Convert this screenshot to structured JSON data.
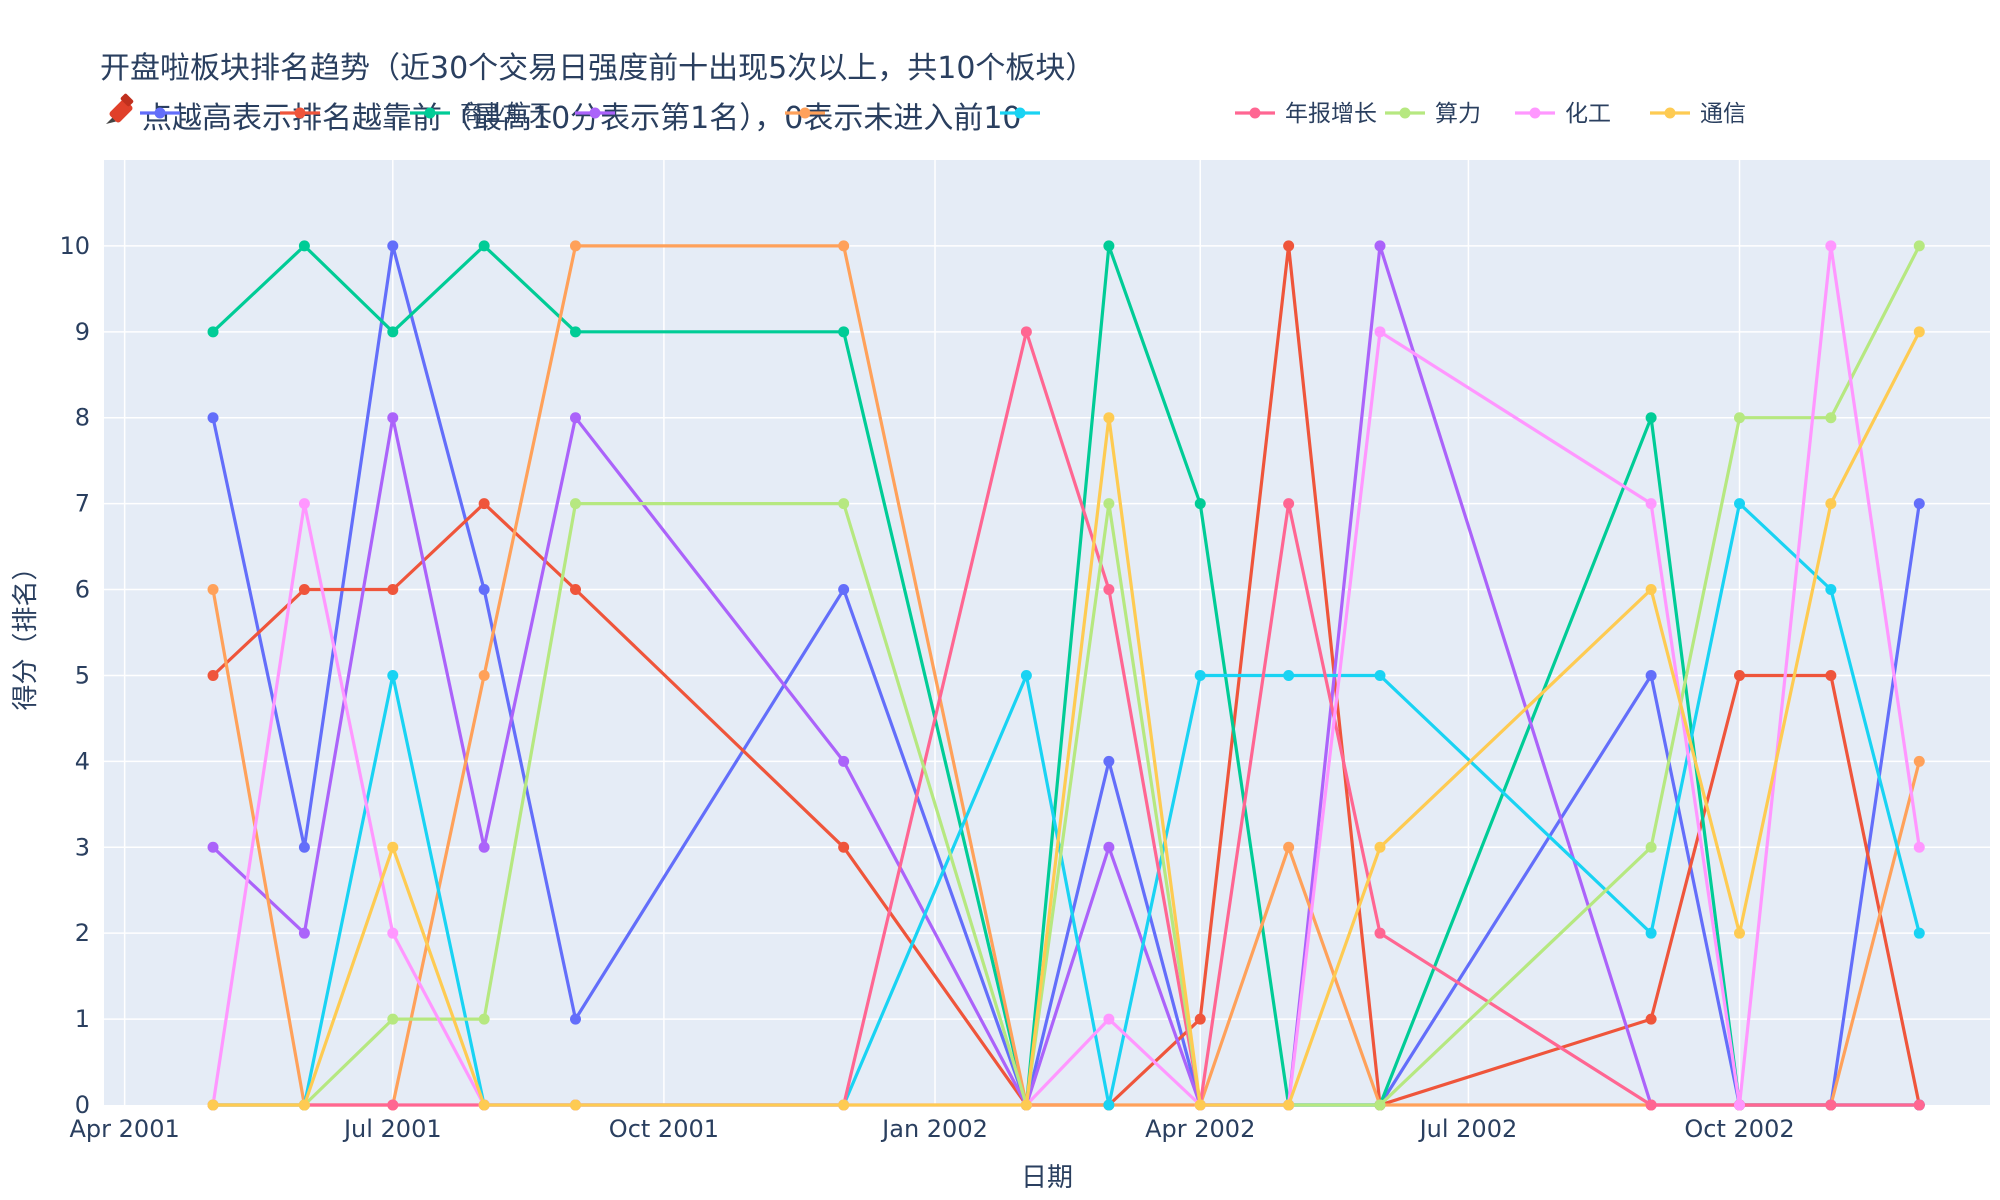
{
  "chart_data": {
    "type": "line",
    "title": "开盘啦板块排名趋势（近30个交易日强度前十出现5次以上，共10个板块）",
    "subtitle": "点越高表示排名越靠前（最高10分表示第1名），0表示未进入前10",
    "subtitle_icon": "pushpin-icon",
    "xlabel": "日期",
    "ylabel": "得分（排名）",
    "x_axis_type": "date",
    "xlim": [
      "2001-03-25",
      "2002-12-25"
    ],
    "ylim": [
      0,
      11
    ],
    "x_ticks": [
      {
        "date": "2001-04-01",
        "label": "Apr 2001"
      },
      {
        "date": "2001-07-01",
        "label": "Jul 2001"
      },
      {
        "date": "2001-10-01",
        "label": "Oct 2001"
      },
      {
        "date": "2002-01-01",
        "label": "Jan 2002"
      },
      {
        "date": "2002-04-01",
        "label": "Apr 2002"
      },
      {
        "date": "2002-07-01",
        "label": "Jul 2002"
      },
      {
        "date": "2002-10-01",
        "label": "Oct 2002"
      }
    ],
    "y_ticks": [
      0,
      1,
      2,
      3,
      4,
      5,
      6,
      7,
      8,
      9,
      10
    ],
    "grid": true,
    "legend_position": "top",
    "x": [
      "2001-05-01",
      "2001-06-01",
      "2001-07-01",
      "2001-08-01",
      "2001-09-01",
      "2001-12-01",
      "2002-02-01",
      "2002-03-01",
      "2002-04-01",
      "2002-05-01",
      "2002-06-01",
      "2002-09-01",
      "2002-10-01",
      "2002-11-01",
      "2002-12-01"
    ],
    "series": [
      {
        "name": "",
        "color": "#636efa",
        "values": [
          8,
          3,
          10,
          6,
          1,
          6,
          0,
          4,
          0,
          0,
          0,
          5,
          0,
          0,
          7
        ]
      },
      {
        "name": "",
        "color": "#ef553b",
        "values": [
          5,
          6,
          6,
          7,
          6,
          3,
          0,
          0,
          1,
          10,
          0,
          1,
          5,
          5,
          0
        ]
      },
      {
        "name": "商业航天",
        "color": "#00cc96",
        "values": [
          9,
          10,
          9,
          10,
          9,
          9,
          0,
          10,
          7,
          0,
          0,
          8,
          0,
          0,
          0
        ]
      },
      {
        "name": "",
        "color": "#ab63fa",
        "values": [
          3,
          2,
          8,
          3,
          8,
          4,
          0,
          3,
          0,
          0,
          10,
          0,
          0,
          0,
          0
        ]
      },
      {
        "name": "",
        "color": "#ffa15a",
        "values": [
          6,
          0,
          0,
          5,
          10,
          10,
          0,
          0,
          0,
          3,
          0,
          0,
          0,
          0,
          4
        ]
      },
      {
        "name": "",
        "color": "#19d3f3",
        "values": [
          0,
          0,
          5,
          0,
          0,
          0,
          5,
          0,
          5,
          5,
          5,
          2,
          7,
          6,
          2
        ]
      },
      {
        "name": "年报增长",
        "color": "#ff6692",
        "values": [
          0,
          0,
          0,
          0,
          0,
          0,
          9,
          6,
          0,
          7,
          2,
          0,
          0,
          0,
          0
        ]
      },
      {
        "name": "算力",
        "color": "#b6e880",
        "values": [
          0,
          0,
          1,
          1,
          7,
          7,
          0,
          7,
          0,
          0,
          0,
          3,
          8,
          8,
          10
        ]
      },
      {
        "name": "化工",
        "color": "#ff97ff",
        "values": [
          0,
          7,
          2,
          0,
          0,
          0,
          0,
          1,
          0,
          0,
          9,
          7,
          0,
          10,
          3
        ]
      },
      {
        "name": "通信",
        "color": "#fecb52",
        "values": [
          0,
          0,
          3,
          0,
          0,
          0,
          0,
          8,
          0,
          0,
          3,
          6,
          2,
          7,
          9
        ]
      }
    ]
  }
}
